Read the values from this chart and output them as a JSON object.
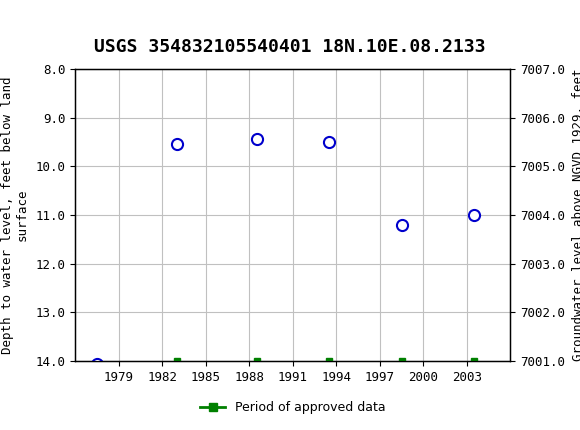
{
  "title": "USGS 354832105540401 18N.10E.08.2133",
  "ylabel_left": "Depth to water level, feet below land\nsurface",
  "ylabel_right": "Groundwater level above NGVD 1929, feet",
  "xlim": [
    1976,
    2006
  ],
  "ylim_left": [
    8.0,
    14.0
  ],
  "ylim_right": [
    7007.0,
    7001.0
  ],
  "yticks_left": [
    8.0,
    9.0,
    10.0,
    11.0,
    12.0,
    13.0,
    14.0
  ],
  "yticks_right": [
    7007.0,
    7006.0,
    7005.0,
    7004.0,
    7003.0,
    7002.0,
    7001.0
  ],
  "xticks": [
    1979,
    1982,
    1985,
    1988,
    1991,
    1994,
    1997,
    2000,
    2003
  ],
  "data_x": [
    1977.5,
    1983.0,
    1988.5,
    1993.5,
    1998.5,
    2003.5
  ],
  "data_y": [
    14.05,
    9.55,
    9.45,
    9.5,
    11.2,
    11.0
  ],
  "green_bar_x": [
    1983.0,
    1988.5,
    1993.5,
    1998.5,
    2003.5
  ],
  "point_color": "#0000cc",
  "point_size": 8,
  "green_color": "#008000",
  "header_color": "#006633",
  "background_color": "#ffffff",
  "grid_color": "#c0c0c0",
  "legend_label": "Period of approved data",
  "title_fontsize": 13,
  "axis_label_fontsize": 9,
  "tick_fontsize": 9
}
